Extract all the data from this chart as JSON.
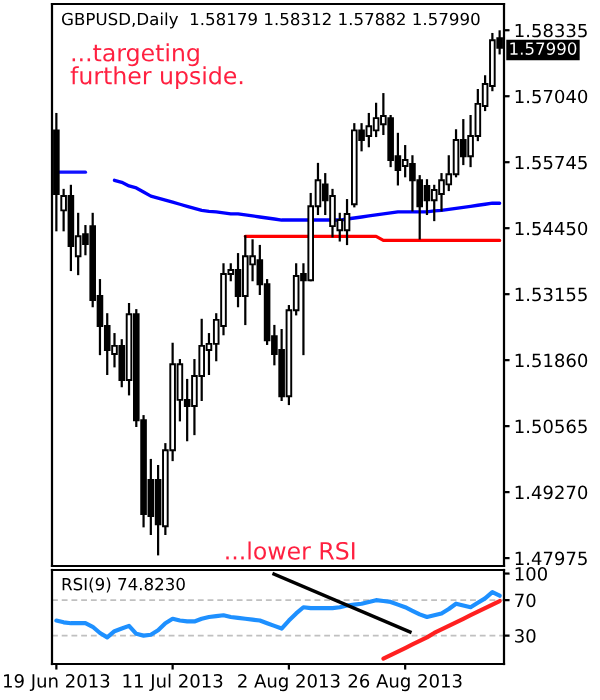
{
  "chart_data": [
    {
      "type": "candlestick",
      "title": "GBPUSD,Daily  1.58179 1.58312 1.57882 1.57990",
      "categories": [
        null,
        null,
        null,
        null,
        null,
        null,
        null,
        null,
        null,
        null,
        null,
        null,
        null,
        null,
        null,
        null,
        null,
        null,
        null,
        null,
        null,
        null,
        null,
        null,
        null,
        null,
        null,
        null,
        null,
        null,
        null,
        null,
        null,
        null,
        null,
        null,
        null,
        null,
        null,
        null,
        null,
        null,
        null,
        null,
        null,
        null,
        null,
        null,
        null,
        null,
        null,
        null,
        null,
        null,
        null,
        null,
        null,
        null,
        null,
        null,
        null,
        null
      ],
      "ohlc": [
        [
          1.5637,
          1.5669,
          1.5441,
          1.5512
        ],
        [
          1.548,
          1.552,
          1.5441,
          1.5508
        ],
        [
          1.5508,
          1.5528,
          1.5363,
          1.541
        ],
        [
          1.539,
          1.5473,
          1.5355,
          1.5429
        ],
        [
          1.5433,
          1.5449,
          1.5394,
          1.5414
        ],
        [
          1.5449,
          1.5473,
          1.5292,
          1.5304
        ],
        [
          1.5312,
          1.5343,
          1.5198,
          1.5253
        ],
        [
          1.5253,
          1.5276,
          1.5159,
          1.5206
        ],
        [
          1.5198,
          1.5237,
          1.5174,
          1.5214
        ],
        [
          1.5214,
          1.5225,
          1.5135,
          1.5147
        ],
        [
          1.5147,
          1.5296,
          1.5119,
          1.5276
        ],
        [
          1.5276,
          1.5284,
          1.5057,
          1.5068
        ],
        [
          1.5068,
          1.5076,
          1.486,
          1.4884
        ],
        [
          1.4951,
          1.499,
          1.4845,
          1.488
        ],
        [
          1.4951,
          1.4978,
          1.4805,
          1.4864
        ],
        [
          1.486,
          1.5021,
          1.4845,
          1.5009
        ],
        [
          1.5009,
          1.5218,
          1.499,
          1.5178
        ],
        [
          1.5108,
          1.5186,
          1.5068,
          1.5178
        ],
        [
          1.5108,
          1.5147,
          1.5029,
          1.5096
        ],
        [
          1.5096,
          1.5186,
          1.5041,
          1.5155
        ],
        [
          1.5155,
          1.5265,
          1.5108,
          1.5214
        ],
        [
          1.5206,
          1.5237,
          1.5159,
          1.5218
        ],
        [
          1.5218,
          1.5276,
          1.5186,
          1.5265
        ],
        [
          1.5253,
          1.5374,
          1.5237,
          1.5355
        ],
        [
          1.5355,
          1.5374,
          1.5343,
          1.5363
        ],
        [
          1.5363,
          1.5394,
          1.5292,
          1.5312
        ],
        [
          1.5312,
          1.5429,
          1.5257,
          1.539
        ],
        [
          1.5374,
          1.5421,
          1.5343,
          1.539
        ],
        [
          1.5382,
          1.541,
          1.5316,
          1.5335
        ],
        [
          1.5335,
          1.5343,
          1.5218,
          1.5225
        ],
        [
          1.5233,
          1.5253,
          1.5178,
          1.5198
        ],
        [
          1.5206,
          1.5245,
          1.5108,
          1.5115
        ],
        [
          1.5115,
          1.5292,
          1.51,
          1.5284
        ],
        [
          1.5284,
          1.5374,
          1.5276,
          1.5351
        ],
        [
          1.5355,
          1.5374,
          1.5198,
          1.5343
        ],
        [
          1.5343,
          1.5512,
          1.5343,
          1.5488
        ],
        [
          1.5488,
          1.5571,
          1.5473,
          1.5539
        ],
        [
          1.5531,
          1.5551,
          1.5473,
          1.55
        ],
        [
          1.5449,
          1.552,
          1.5429,
          1.5508
        ],
        [
          1.5441,
          1.5473,
          1.5421,
          1.5461
        ],
        [
          1.5441,
          1.55,
          1.5414,
          1.5473
        ],
        [
          1.5492,
          1.5649,
          1.5488,
          1.5637
        ],
        [
          1.5637,
          1.5649,
          1.5598,
          1.5618
        ],
        [
          1.5626,
          1.5669,
          1.5606,
          1.5645
        ],
        [
          1.5637,
          1.5689,
          1.5626,
          1.5661
        ],
        [
          1.5649,
          1.5708,
          1.563,
          1.5665
        ],
        [
          1.5661,
          1.5665,
          1.5567,
          1.5579
        ],
        [
          1.5586,
          1.563,
          1.5531,
          1.5559
        ],
        [
          1.5567,
          1.5606,
          1.5547,
          1.5579
        ],
        [
          1.5571,
          1.5586,
          1.548,
          1.5539
        ],
        [
          1.5539,
          1.5547,
          1.5425,
          1.5488
        ],
        [
          1.5528,
          1.5539,
          1.5473,
          1.55
        ],
        [
          1.55,
          1.5528,
          1.5461,
          1.552
        ],
        [
          1.5512,
          1.5551,
          1.548,
          1.5539
        ],
        [
          1.5531,
          1.5586,
          1.552,
          1.5551
        ],
        [
          1.5551,
          1.5637,
          1.5547,
          1.5618
        ],
        [
          1.5618,
          1.5657,
          1.5571,
          1.5586
        ],
        [
          1.5586,
          1.5665,
          1.5567,
          1.5626
        ],
        [
          1.5626,
          1.5716,
          1.5618,
          1.5689
        ],
        [
          1.5685,
          1.5743,
          1.5677,
          1.5728
        ],
        [
          1.5724,
          1.5826,
          1.5716,
          1.5814
        ],
        [
          1.58179,
          1.58312,
          1.57882,
          1.5799
        ]
      ],
      "series": [
        {
          "type": "line",
          "color": "#1010ff",
          "values": [
            1.5555,
            1.5555,
            1.5555,
            1.5555,
            1.5555,
            null,
            null,
            null,
            null,
            null,
            null,
            null,
            null,
            null,
            null,
            null,
            null,
            null,
            null,
            null,
            null,
            null,
            null,
            null,
            null,
            null,
            null,
            null,
            null,
            null,
            null,
            null,
            null,
            null,
            null,
            null,
            null,
            null,
            null,
            null,
            null,
            null,
            null,
            null,
            null,
            null,
            null,
            null,
            null,
            null,
            null,
            null,
            null,
            null,
            null,
            null,
            null,
            null,
            null,
            null,
            null,
            null
          ]
        },
        {
          "type": "line",
          "color": "#0000ff",
          "values": [
            null,
            null,
            null,
            null,
            null,
            null,
            null,
            null,
            1.5539,
            1.5535,
            1.5528,
            1.5524,
            1.5516,
            1.5508,
            1.5504,
            1.55,
            1.5496,
            1.5492,
            1.5488,
            1.5484,
            1.548,
            1.5478,
            1.5477,
            1.5475,
            1.5473,
            1.5473,
            1.5471,
            1.5469,
            1.5467,
            1.5465,
            1.5463,
            1.5461,
            1.5461,
            1.5461,
            1.5461,
            1.5461,
            1.5461,
            1.5461,
            1.5461,
            1.5461,
            1.5463,
            1.5465,
            1.5467,
            1.5469,
            1.5471,
            1.5473,
            1.5475,
            1.5477,
            1.5477,
            1.5477,
            1.5477,
            1.5477,
            1.5479,
            1.548,
            1.5482,
            1.5484,
            1.5486,
            1.5488,
            1.549,
            1.5492,
            1.5494,
            1.5494
          ]
        },
        {
          "type": "line",
          "color": "#ff0000",
          "values": [
            null,
            null,
            null,
            null,
            null,
            null,
            null,
            null,
            null,
            null,
            null,
            null,
            null,
            null,
            null,
            null,
            null,
            null,
            null,
            null,
            null,
            null,
            null,
            null,
            null,
            null,
            1.5429,
            1.5429,
            1.5429,
            1.5429,
            1.5429,
            1.5429,
            1.5429,
            1.5429,
            1.5429,
            1.5429,
            1.5429,
            1.5429,
            1.5429,
            1.5429,
            1.5429,
            1.5429,
            1.5429,
            1.5429,
            1.5429,
            1.5421,
            1.5421,
            1.5421,
            1.5421,
            1.5421,
            1.5421,
            1.5421,
            1.5421,
            1.5421,
            1.5421,
            1.5421,
            1.5421,
            1.5421,
            1.5421,
            1.5421,
            1.5421,
            1.5421
          ]
        }
      ],
      "ylim": [
        1.4782,
        1.5885
      ],
      "yticks": [
        1.58335,
        {
          "value": 1.5704,
          "label": "1.57040"
        },
        1.55745,
        {
          "value": 1.5445,
          "label": "1.54450"
        },
        1.53155,
        {
          "value": 1.5186,
          "label": "1.51860"
        },
        1.50565,
        {
          "value": 1.4927,
          "label": "1.49270"
        },
        1.47975
      ],
      "annotations": [
        "...targeting\nfurther upside.",
        "...lower RSI",
        "1.57990"
      ]
    },
    {
      "type": "line",
      "title": "RSI(9) 74.8230",
      "categories": [
        "19 Jun 2013",
        null,
        null,
        null,
        null,
        null,
        null,
        null,
        null,
        null,
        null,
        null,
        null,
        null,
        null,
        null,
        "11 Jul 2013",
        null,
        null,
        null,
        null,
        null,
        null,
        null,
        null,
        null,
        null,
        null,
        null,
        null,
        null,
        null,
        "2 Aug 2013",
        null,
        null,
        null,
        null,
        null,
        null,
        null,
        null,
        null,
        null,
        null,
        null,
        null,
        null,
        null,
        "26 Aug 2013",
        null,
        null,
        null,
        null,
        null,
        null,
        null,
        null,
        null,
        null,
        null,
        null,
        null
      ],
      "series": [
        {
          "color": "#1e90ff",
          "values": [
            47,
            45,
            44,
            44,
            44,
            40,
            33,
            28,
            35,
            38,
            41,
            32,
            30,
            31,
            36,
            44,
            49,
            47,
            46,
            46,
            49,
            51,
            52,
            53,
            51,
            50,
            49,
            48,
            47,
            44,
            41,
            38,
            47,
            55,
            62,
            61,
            61,
            61,
            61,
            62,
            64,
            65,
            66,
            68,
            70,
            69,
            68,
            65,
            62,
            58,
            54,
            51,
            53,
            55,
            60,
            66,
            64,
            62,
            67,
            72,
            79,
            75
          ]
        },
        {
          "color": "#ff2020",
          "values": [
            null,
            null,
            null,
            null,
            null,
            null,
            null,
            null,
            null,
            null,
            null,
            null,
            null,
            null,
            null,
            null,
            null,
            null,
            null,
            null,
            null,
            null,
            null,
            null,
            null,
            null,
            null,
            null,
            null,
            null,
            null,
            null,
            null,
            null,
            null,
            null,
            null,
            null,
            null,
            null,
            null,
            null,
            null,
            null,
            null,
            4,
            8,
            12,
            16,
            20,
            24,
            28,
            33,
            37,
            41,
            45,
            49,
            53,
            57,
            61,
            65,
            69
          ]
        }
      ],
      "ylim": [
        -2,
        104
      ],
      "yticks": [
        30,
        70,
        100
      ],
      "ref_lines": [
        {
          "axis": "y",
          "value": 70,
          "color": "#c0c0c0",
          "line_style": "dashed"
        },
        {
          "axis": "y",
          "value": 30,
          "color": "#c0c0c0",
          "line_style": "dashed"
        }
      ]
    }
  ]
}
